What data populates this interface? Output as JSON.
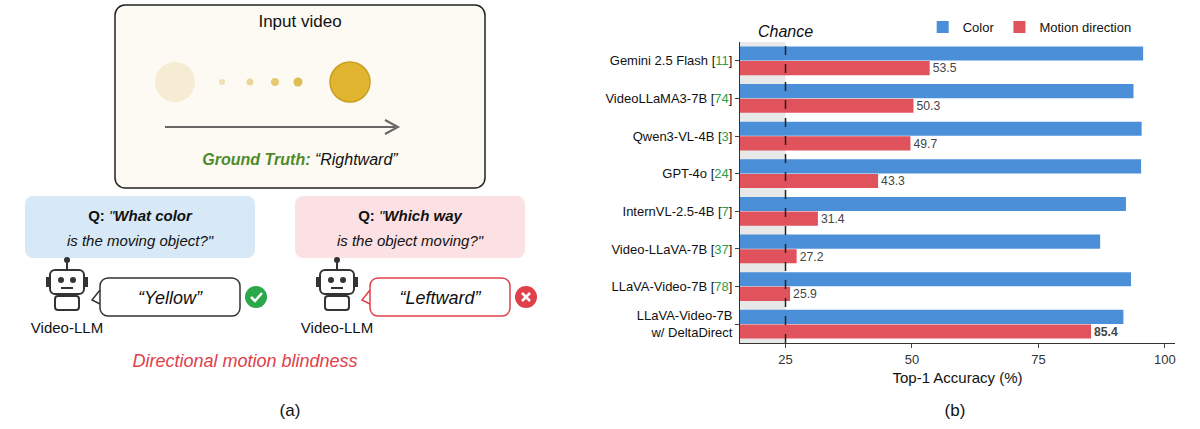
{
  "figure": {
    "panel_a": {
      "label": "(a)",
      "box_title": "Input video",
      "ground_truth_label": "Ground Truth:",
      "ground_truth_value": "“Rightward”",
      "questions": [
        {
          "prefix": "Q:",
          "text": "\"What color\nis the moving object?\"",
          "bold": "What color",
          "answer": "“Yellow”",
          "correct": true,
          "agent": "Video-LLM"
        },
        {
          "prefix": "Q:",
          "text": "\"Which way\nis the object moving?\"",
          "bold": "Which way",
          "answer": "“Leftward”",
          "correct": false,
          "agent": "Video-LLM"
        }
      ],
      "caption": "Directional motion blindness"
    },
    "panel_b_label": "(b)"
  },
  "chart_data": {
    "type": "bar",
    "orientation": "horizontal",
    "categories": [
      "Gemini 2.5 Flash [11]",
      "VideoLLaMA3-7B [74]",
      "Qwen3-VL-4B [3]",
      "GPT-4o [24]",
      "InternVL-2.5-4B [7]",
      "Video-LLaVA-7B [37]",
      "LLaVA-Video-7B [78]",
      "LLaVA-Video-7B\nw/ DeltaDirect"
    ],
    "series": [
      {
        "name": "Color",
        "color": "#4a8fd8",
        "values": [
          95.7,
          93.8,
          95.4,
          95.3,
          92.3,
          87.2,
          93.3,
          91.8
        ]
      },
      {
        "name": "Motion direction",
        "color": "#e0525c",
        "values": [
          53.5,
          50.3,
          49.7,
          43.3,
          31.4,
          27.2,
          25.9,
          85.4
        ],
        "data_labels": true
      }
    ],
    "xlabel": "Top-1 Accuracy (%)",
    "xlim": [
      16,
      102
    ],
    "xticks": [
      25,
      50,
      75,
      100
    ],
    "chance": {
      "value": 25,
      "label": "Chance"
    },
    "legend": "top",
    "grid": false
  }
}
